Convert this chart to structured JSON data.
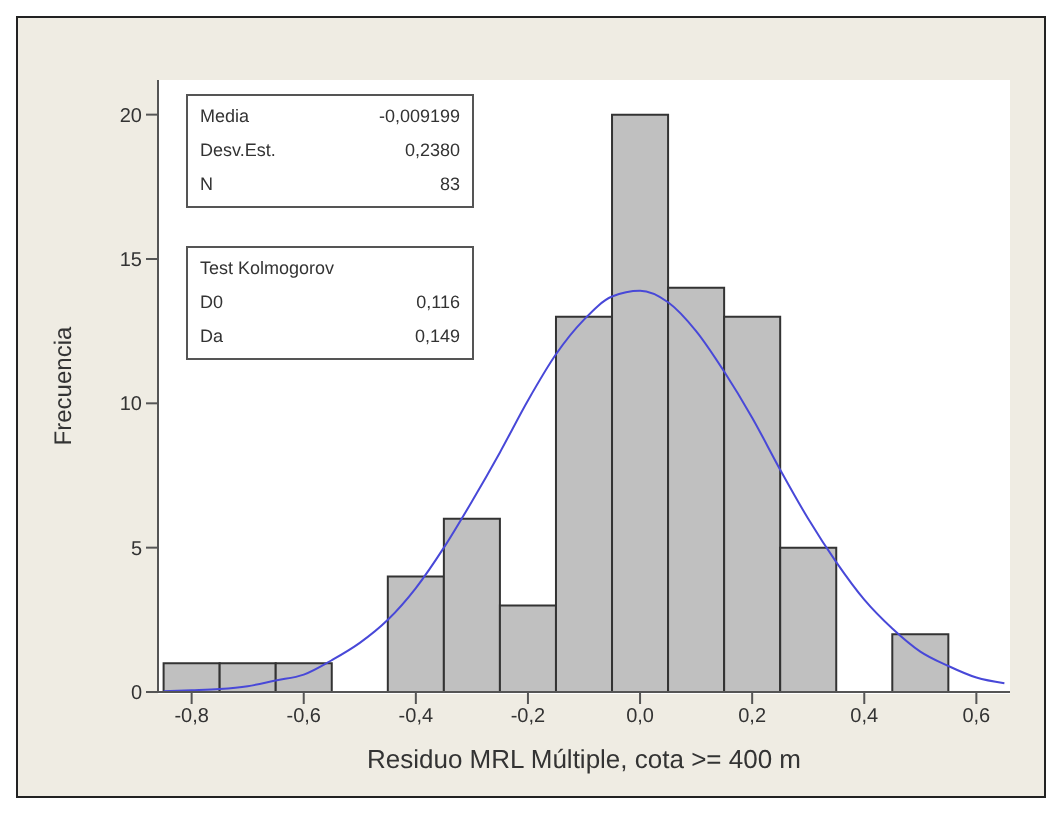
{
  "chart_data": {
    "type": "histogram",
    "xlabel": "Residuo MRL Múltiple, cota >= 400 m",
    "ylabel": "Frecuencia",
    "bins": [
      -0.85,
      -0.75,
      -0.65,
      -0.55,
      -0.45,
      -0.35,
      -0.25,
      -0.15,
      -0.05,
      0.05,
      0.15,
      0.25,
      0.35,
      0.45,
      0.55
    ],
    "values": [
      1,
      1,
      1,
      0,
      4,
      6,
      3,
      13,
      20,
      14,
      13,
      5,
      0,
      2
    ],
    "color": "#c0c0c0",
    "series": [
      {
        "type": "line",
        "color": "#4848d8",
        "x": [
          -0.85,
          -0.8,
          -0.75,
          -0.7,
          -0.65,
          -0.6,
          -0.55,
          -0.5,
          -0.45,
          -0.4,
          -0.35,
          -0.3,
          -0.25,
          -0.2,
          -0.15,
          -0.1,
          -0.05,
          0,
          0.05,
          0.1,
          0.15,
          0.2,
          0.25,
          0.3,
          0.35,
          0.4,
          0.45,
          0.5,
          0.55,
          0.6,
          0.65
        ],
        "values": [
          0.03,
          0.06,
          0.1,
          0.2,
          0.4,
          0.6,
          1.1,
          1.7,
          2.5,
          3.6,
          5.0,
          6.6,
          8.3,
          10.1,
          11.7,
          12.9,
          13.7,
          13.9,
          13.5,
          12.5,
          11.1,
          9.5,
          7.7,
          6.0,
          4.5,
          3.2,
          2.2,
          1.4,
          0.9,
          0.5,
          0.3
        ]
      }
    ],
    "xlim": [
      -0.86,
      0.66
    ],
    "ylim": [
      0,
      21.2
    ],
    "xticks": [
      {
        "value": -0.8,
        "label": "-0,8"
      },
      {
        "value": -0.6,
        "label": "-0,6"
      },
      {
        "value": -0.4,
        "label": "-0,4"
      },
      {
        "value": -0.2,
        "label": "-0,2"
      },
      {
        "value": 0,
        "label": "0,0"
      },
      {
        "value": 0.2,
        "label": "0,2"
      },
      {
        "value": 0.4,
        "label": "0,4"
      },
      {
        "value": 0.6,
        "label": "0,6"
      }
    ],
    "yticks": [
      0,
      5,
      10,
      15,
      20
    ],
    "grid": false,
    "legend": false,
    "marker": "none",
    "annotations": [
      "Media",
      "-0,009199",
      "Desv.Est.",
      "0,2380",
      "N",
      "83",
      "Test  Kolmogorov",
      "D0",
      "0,116",
      "Da",
      "0,149"
    ]
  }
}
